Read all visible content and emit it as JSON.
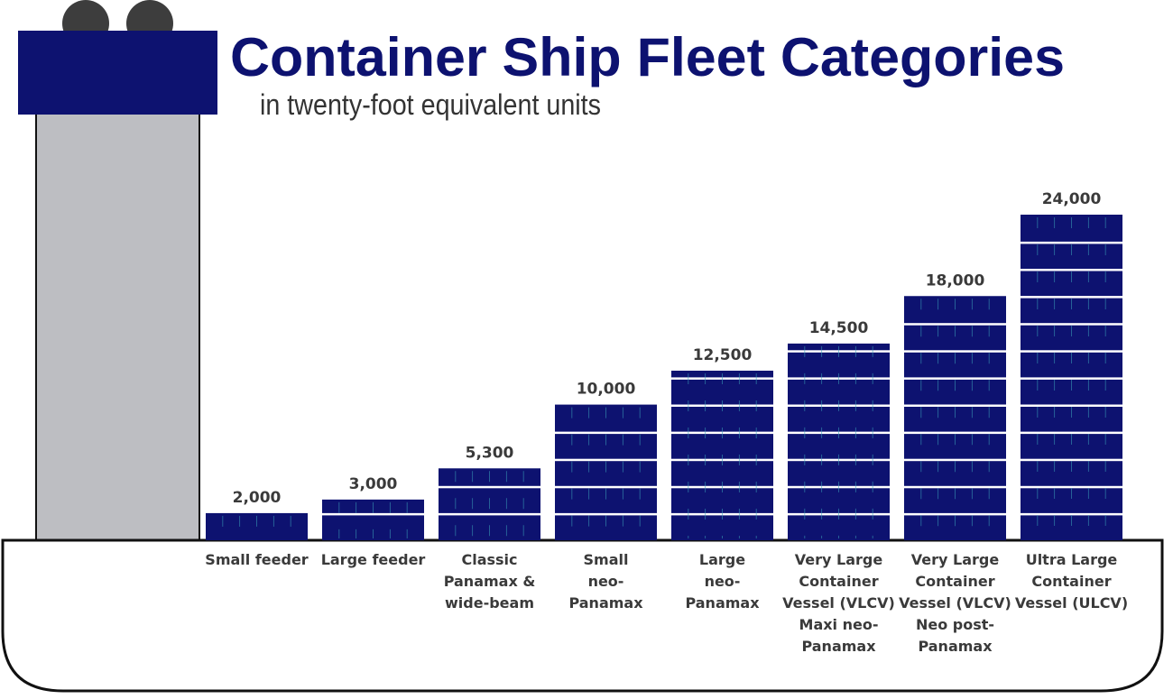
{
  "title": "Container Ship Fleet Categories",
  "subtitle": "in twenty-foot equivalent units",
  "colors": {
    "container": "#0d1270",
    "container_line": "#3aa0b8",
    "hull_stroke": "#111111",
    "tower": "#bdbec2",
    "bridge": "#0d1270",
    "funnel": "#3d3d3d"
  },
  "chart_data": {
    "type": "bar",
    "title": "Container Ship Fleet Categories",
    "subtitle": "in twenty-foot equivalent units",
    "xlabel": "",
    "ylabel": "",
    "ylim": [
      0,
      24000
    ],
    "grid": false,
    "legend": "none",
    "categories": [
      [
        "Small feeder"
      ],
      [
        "Large feeder"
      ],
      [
        "Classic",
        "Panamax &",
        "wide-beam"
      ],
      [
        "Small",
        "neo-",
        "Panamax"
      ],
      [
        "Large",
        "neo-",
        "Panamax"
      ],
      [
        "Very Large",
        "Container",
        "Vessel (VLCV)",
        "Maxi neo-",
        "Panamax"
      ],
      [
        "Very Large",
        "Container",
        "Vessel (VLCV)",
        "Neo post-",
        "Panamax"
      ],
      [
        "Ultra Large",
        "Container",
        "Vessel (ULCV)"
      ]
    ],
    "values": [
      2000,
      3000,
      5300,
      10000,
      12500,
      14500,
      18000,
      24000
    ],
    "value_labels": [
      "2,000",
      "3,000",
      "5,300",
      "10,000",
      "12,500",
      "14,500",
      "18,000",
      "24,000"
    ]
  }
}
